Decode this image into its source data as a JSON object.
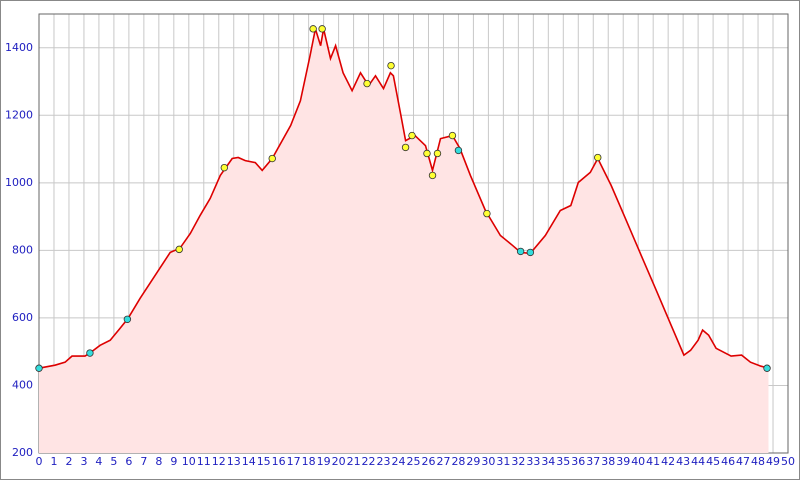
{
  "chart_data": {
    "type": "area",
    "xlim": [
      0,
      50
    ],
    "ylim": [
      200,
      1500
    ],
    "xticks": [
      0,
      1,
      2,
      3,
      4,
      5,
      6,
      7,
      8,
      9,
      10,
      11,
      12,
      13,
      14,
      15,
      16,
      17,
      18,
      19,
      20,
      21,
      22,
      23,
      24,
      25,
      26,
      27,
      28,
      29,
      30,
      31,
      32,
      33,
      34,
      35,
      36,
      37,
      38,
      39,
      40,
      41,
      42,
      43,
      44,
      45,
      46,
      47,
      48,
      49,
      50
    ],
    "yticks": [
      200,
      400,
      600,
      800,
      1000,
      1200,
      1400
    ],
    "grid": true,
    "series": [
      {
        "type": "area",
        "color": "#dd0000",
        "fill": "#ffe4e4",
        "x": [
          0,
          1.07,
          1.74,
          2.2,
          3.07,
          3.4,
          4.08,
          4.75,
          5.41,
          5.95,
          6.75,
          7.75,
          8.76,
          9.4,
          10.1,
          10.76,
          11.43,
          12.1,
          12.9,
          13.3,
          13.77,
          14.44,
          14.9,
          15.57,
          16.8,
          17.45,
          18.1,
          18.45,
          18.8,
          19.0,
          19.46,
          19.8,
          20.3,
          20.9,
          21.46,
          22.0,
          22.46,
          23.0,
          23.46,
          23.66,
          24.1,
          24.47,
          25.1,
          25.8,
          26.27,
          26.8,
          27.6,
          28.1,
          28.8,
          29.8,
          30.8,
          31.6,
          32.15,
          32.8,
          33.8,
          34.8,
          35.5,
          36.0,
          36.8,
          37.3,
          38.2,
          39.2,
          40.2,
          41.2,
          42.2,
          43.05,
          43.5,
          44.0,
          44.3,
          44.7,
          45.2,
          46.2,
          46.9,
          47.5,
          48.2,
          48.7
        ],
        "values": [
          451,
          460,
          469,
          487,
          487,
          496,
          519,
          534,
          569,
          599,
          658,
          726,
          794,
          806,
          850,
          904,
          954,
          1022,
          1072,
          1075,
          1066,
          1060,
          1037,
          1072,
          1170,
          1243,
          1377,
          1456,
          1406,
          1456,
          1368,
          1406,
          1326,
          1273,
          1326,
          1288,
          1317,
          1279,
          1326,
          1317,
          1214,
          1125,
          1140,
          1110,
          1037,
          1131,
          1140,
          1102,
          1022,
          918,
          844,
          815,
          794,
          791,
          844,
          918,
          933,
          1001,
          1031,
          1072,
          992,
          889,
          785,
          682,
          578,
          490,
          504,
          534,
          564,
          549,
          510,
          487,
          490,
          469,
          457,
          451
        ]
      },
      {
        "type": "scatter",
        "color": "#ffff33",
        "x": [
          9.36,
          12.37,
          15.57,
          18.3,
          18.9,
          21.9,
          23.5,
          24.47,
          24.9,
          25.9,
          26.27,
          26.6,
          27.6,
          29.9,
          37.3
        ],
        "values": [
          803,
          1045,
          1072,
          1456,
          1456,
          1294,
          1347,
          1105,
          1140,
          1087,
          1022,
          1087,
          1140,
          909,
          1075
        ]
      },
      {
        "type": "scatter",
        "color": "#33dddd",
        "x": [
          0,
          3.4,
          5.9,
          28.0,
          32.15,
          32.8,
          48.6
        ],
        "values": [
          451,
          496,
          596,
          1096,
          797,
          794,
          451
        ]
      }
    ]
  }
}
